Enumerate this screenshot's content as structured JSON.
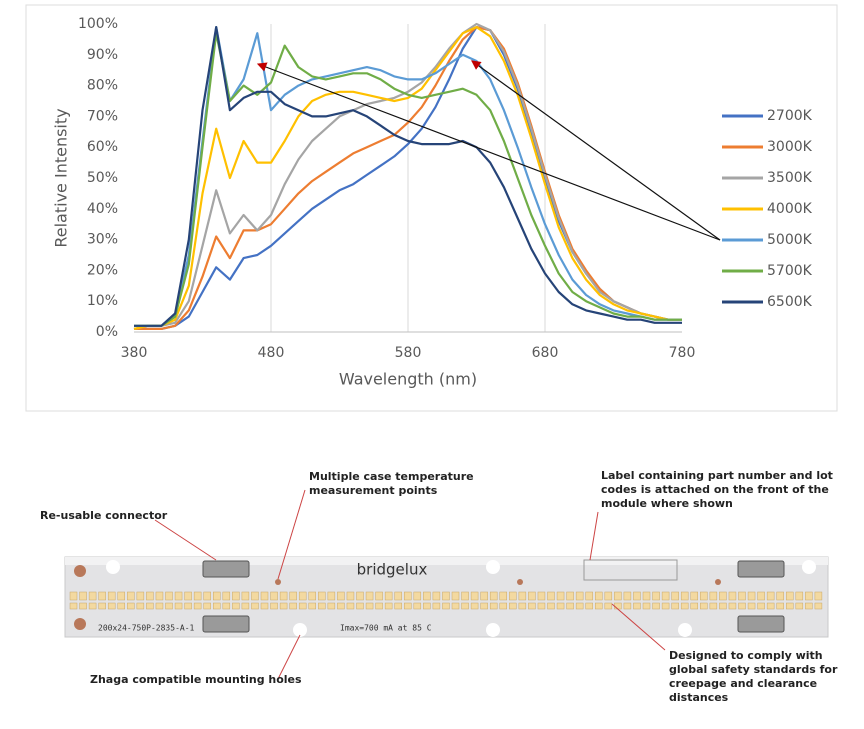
{
  "chart_data": {
    "type": "line",
    "x_label": "Wavelength (nm)",
    "y_label": "Relative Intensity",
    "x": [
      380,
      390,
      400,
      410,
      420,
      430,
      440,
      450,
      460,
      470,
      480,
      490,
      500,
      510,
      520,
      530,
      540,
      550,
      560,
      570,
      580,
      590,
      600,
      610,
      620,
      630,
      640,
      650,
      660,
      670,
      680,
      690,
      700,
      710,
      720,
      730,
      740,
      750,
      760,
      770,
      780
    ],
    "xlim": [
      380,
      780
    ],
    "xticks": [
      380,
      480,
      580,
      680,
      780
    ],
    "ylim": [
      0,
      100
    ],
    "yticks": [
      {
        "value": 0,
        "label": "0%"
      },
      {
        "value": 10,
        "label": "10%"
      },
      {
        "value": 20,
        "label": "20%"
      },
      {
        "value": 30,
        "label": "30%"
      },
      {
        "value": 40,
        "label": "40%"
      },
      {
        "value": 50,
        "label": "50%"
      },
      {
        "value": 60,
        "label": "60%"
      },
      {
        "value": 70,
        "label": "70%"
      },
      {
        "value": 80,
        "label": "80%"
      },
      {
        "value": 90,
        "label": "90%"
      },
      {
        "value": 100,
        "label": "100%"
      }
    ],
    "grid": "x",
    "legend": "right",
    "series": [
      {
        "name": "2700K",
        "color": "#4472c4",
        "values": [
          1,
          1,
          1,
          2,
          5,
          13,
          21,
          17,
          24,
          25,
          28,
          32,
          36,
          40,
          43,
          46,
          48,
          51,
          54,
          57,
          61,
          66,
          73,
          82,
          92,
          99,
          98,
          90,
          79,
          65,
          50,
          36,
          26,
          19,
          14,
          10,
          8,
          6,
          5,
          4,
          4
        ]
      },
      {
        "name": "3000K",
        "color": "#ed7d31",
        "values": [
          1,
          1,
          1,
          2,
          7,
          18,
          31,
          24,
          33,
          33,
          35,
          40,
          45,
          49,
          52,
          55,
          58,
          60,
          62,
          64,
          68,
          73,
          80,
          88,
          95,
          99,
          98,
          92,
          81,
          67,
          52,
          38,
          27,
          20,
          14,
          10,
          8,
          6,
          5,
          4,
          4
        ]
      },
      {
        "name": "3500K",
        "color": "#a5a5a5",
        "values": [
          1,
          2,
          2,
          3,
          10,
          28,
          46,
          32,
          38,
          33,
          38,
          48,
          56,
          62,
          66,
          70,
          72,
          74,
          75,
          76,
          78,
          81,
          86,
          92,
          97,
          100,
          98,
          91,
          80,
          66,
          51,
          37,
          26,
          19,
          13,
          10,
          8,
          6,
          5,
          4,
          4
        ]
      },
      {
        "name": "4000K",
        "color": "#ffc000",
        "values": [
          1,
          2,
          2,
          4,
          15,
          45,
          66,
          50,
          62,
          55,
          55,
          62,
          70,
          75,
          77,
          78,
          78,
          77,
          76,
          75,
          76,
          79,
          85,
          91,
          97,
          99,
          96,
          88,
          77,
          63,
          48,
          34,
          24,
          17,
          12,
          9,
          7,
          6,
          5,
          4,
          4
        ]
      },
      {
        "name": "5000K",
        "color": "#5b9bd5",
        "values": [
          2,
          2,
          2,
          5,
          25,
          62,
          99,
          75,
          82,
          97,
          72,
          77,
          80,
          82,
          83,
          84,
          85,
          86,
          85,
          83,
          82,
          82,
          84,
          87,
          90,
          88,
          82,
          72,
          60,
          47,
          35,
          25,
          17,
          12,
          9,
          7,
          6,
          5,
          4,
          4,
          4
        ]
      },
      {
        "name": "5700K",
        "color": "#70ad47",
        "values": [
          2,
          2,
          2,
          5,
          22,
          60,
          97,
          75,
          80,
          77,
          81,
          93,
          86,
          83,
          82,
          83,
          84,
          84,
          82,
          79,
          77,
          76,
          77,
          78,
          79,
          77,
          72,
          62,
          50,
          38,
          28,
          19,
          13,
          10,
          8,
          6,
          5,
          5,
          4,
          4,
          4
        ]
      },
      {
        "name": "6500K",
        "color": "#264478",
        "values": [
          2,
          2,
          2,
          6,
          30,
          72,
          99,
          72,
          76,
          78,
          78,
          74,
          72,
          70,
          70,
          71,
          72,
          70,
          67,
          64,
          62,
          61,
          61,
          61,
          62,
          60,
          55,
          47,
          37,
          27,
          19,
          13,
          9,
          7,
          6,
          5,
          4,
          4,
          3,
          3,
          3
        ]
      }
    ]
  },
  "module": {
    "brand": "bridgelux",
    "part_code": "200x24-750P-2835-A-1",
    "rating": "Imax=700 mA at 85 C"
  },
  "annotations": {
    "connector": [
      "Re-usable connector"
    ],
    "temperature": [
      "Multiple case temperature",
      "measurement points"
    ],
    "label": [
      "Label containing part number and lot",
      "codes is attached on the front of the",
      "module where shown"
    ],
    "holes": [
      "Zhaga compatible mounting holes"
    ],
    "safety": [
      "Designed to comply with",
      "global safety standards for",
      "creepage and clearance",
      "distances"
    ]
  }
}
